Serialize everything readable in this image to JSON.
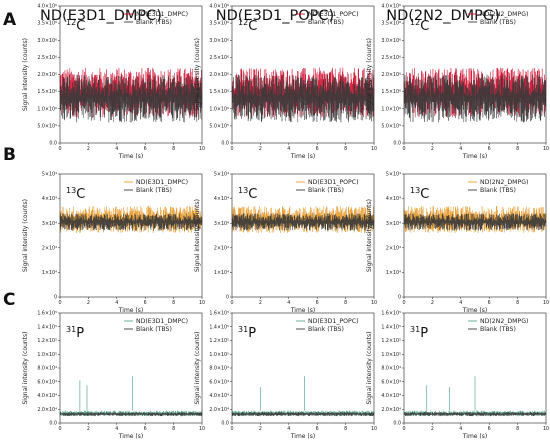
{
  "figure": {
    "column_titles": [
      "ND(E3D1_DMPC)",
      "ND(E3D1_POPC)",
      "ND(2N2_DMPG)"
    ],
    "row_labels": [
      "A",
      "B",
      "C"
    ],
    "xlabel": "Time (s)",
    "ylabel": "Signal intensity (counts)",
    "colors": {
      "blank": "#3a3a3a",
      "A": "#d01030",
      "B": "#e89a2a",
      "C": "#5aa890"
    }
  },
  "chart_data": [
    {
      "type": "line",
      "row": "A",
      "isotope": "12C",
      "isotope_mass": "12",
      "isotope_element": "C",
      "xlim": [
        0,
        10
      ],
      "ylim": [
        0,
        4000000
      ],
      "x_ticks": [
        0,
        2,
        4,
        6,
        8,
        10
      ],
      "y_ticks": [
        "0.0",
        "5.0×10⁵",
        "1.0×10⁶",
        "1.5×10⁶",
        "2.0×10⁶",
        "2.5×10⁶",
        "3.0×10⁶",
        "3.5×10⁶",
        "4.0×10⁶"
      ],
      "y_tick_values": [
        0,
        500000,
        1000000,
        1500000,
        2000000,
        2500000,
        3000000,
        3500000,
        4000000
      ],
      "panels": [
        {
          "column": "ND(E3D1_DMPC)",
          "series": [
            {
              "name": "ND(E3D1_DMPC)",
              "color": "#d01030",
              "band": [
                750000,
                2200000
              ]
            },
            {
              "name": "Blank (TBS)",
              "color": "#3a3a3a",
              "band": [
                600000,
                2000000
              ]
            }
          ]
        },
        {
          "column": "ND(E3D1_POPC)",
          "series": [
            {
              "name": "ND(E3D1_POPC)",
              "color": "#d01030",
              "band": [
                750000,
                2200000
              ]
            },
            {
              "name": "Blank (TBS)",
              "color": "#3a3a3a",
              "band": [
                600000,
                2000000
              ]
            }
          ]
        },
        {
          "column": "ND(2N2_DMPG)",
          "series": [
            {
              "name": "ND(2N2_DMPG)",
              "color": "#d01030",
              "band": [
                750000,
                2200000
              ]
            },
            {
              "name": "Blank (TBS)",
              "color": "#3a3a3a",
              "band": [
                600000,
                2000000
              ]
            }
          ]
        }
      ]
    },
    {
      "type": "line",
      "row": "B",
      "isotope": "13C",
      "isotope_mass": "13",
      "isotope_element": "C",
      "xlim": [
        0,
        10
      ],
      "ylim": [
        0,
        50000
      ],
      "x_ticks": [
        0,
        2,
        4,
        6,
        8,
        10
      ],
      "y_ticks": [
        "0",
        "1×10⁴",
        "2×10⁴",
        "3×10⁴",
        "4×10⁴",
        "5×10⁴"
      ],
      "y_tick_values": [
        0,
        10000,
        20000,
        30000,
        40000,
        50000
      ],
      "panels": [
        {
          "column": "ND(E3D1_DMPC)",
          "series": [
            {
              "name": "ND(E3D1_DMPC)",
              "color": "#e89a2a",
              "band": [
                26000,
                37000
              ]
            },
            {
              "name": "Blank (TBS)",
              "color": "#3a3a3a",
              "band": [
                27000,
                34000
              ]
            }
          ]
        },
        {
          "column": "ND(E3D1_POPC)",
          "series": [
            {
              "name": "ND(E3D1_POPC)",
              "color": "#e89a2a",
              "band": [
                26000,
                37000
              ]
            },
            {
              "name": "Blank (TBS)",
              "color": "#3a3a3a",
              "band": [
                27000,
                34000
              ]
            }
          ]
        },
        {
          "column": "ND(2N2_DMPG)",
          "series": [
            {
              "name": "ND(2N2_DMPG)",
              "color": "#e89a2a",
              "band": [
                26000,
                37000
              ]
            },
            {
              "name": "Blank (TBS)",
              "color": "#3a3a3a",
              "band": [
                27000,
                34000
              ]
            }
          ]
        }
      ]
    },
    {
      "type": "line",
      "row": "C",
      "isotope": "31P",
      "isotope_mass": "31",
      "isotope_element": "P",
      "xlim": [
        0,
        10
      ],
      "ylim": [
        0,
        160000
      ],
      "x_ticks": [
        0,
        2,
        4,
        6,
        8,
        10
      ],
      "y_ticks": [
        "0.0",
        "2.0×10⁴",
        "4.0×10⁴",
        "6.0×10⁴",
        "8.0×10⁴",
        "1.0×10⁵",
        "1.2×10⁵",
        "1.4×10⁵",
        "1.6×10⁵"
      ],
      "y_tick_values": [
        0,
        20000,
        40000,
        60000,
        80000,
        100000,
        120000,
        140000,
        160000
      ],
      "panels": [
        {
          "column": "ND(E3D1_DMPC)",
          "series": [
            {
              "name": "ND(E3D1_DMPC)",
              "color": "#5aa890",
              "band": [
                10000,
                18000
              ],
              "spikes": [
                [
                  1.4,
                  62000
                ],
                [
                  1.9,
                  55000
                ],
                [
                  5.1,
                  68000
                ]
              ]
            },
            {
              "name": "Blank (TBS)",
              "color": "#3a3a3a",
              "band": [
                10000,
                16000
              ]
            }
          ]
        },
        {
          "column": "ND(E3D1_POPC)",
          "series": [
            {
              "name": "ND(E3D1_POPC)",
              "color": "#5aa890",
              "band": [
                10000,
                18000
              ],
              "spikes": [
                [
                  2.0,
                  52000
                ],
                [
                  5.1,
                  68000
                ]
              ]
            },
            {
              "name": "Blank (TBS)",
              "color": "#3a3a3a",
              "band": [
                10000,
                16000
              ]
            }
          ]
        },
        {
          "column": "ND(2N2_DMPG)",
          "series": [
            {
              "name": "ND(2N2_DMPG)",
              "color": "#5aa890",
              "band": [
                10000,
                18000
              ],
              "spikes": [
                [
                  1.6,
                  55000
                ],
                [
                  3.2,
                  52000
                ],
                [
                  5.0,
                  68000
                ]
              ]
            },
            {
              "name": "Blank (TBS)",
              "color": "#3a3a3a",
              "band": [
                10000,
                16000
              ]
            }
          ]
        }
      ]
    }
  ]
}
